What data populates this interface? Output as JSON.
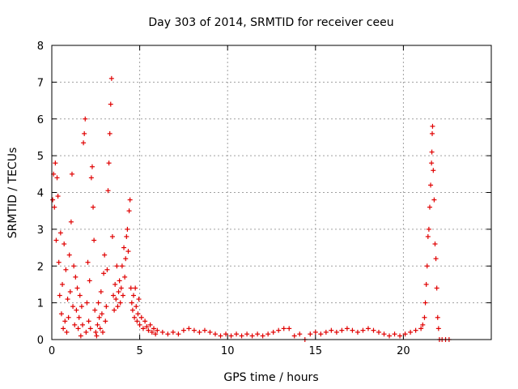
{
  "chart_data": {
    "type": "scatter",
    "title": "Day 303 of 2014, SRMTID for receiver ceeu",
    "xlabel": "GPS time / hours",
    "ylabel": "SRMTID / TECUs",
    "xlim": [
      0,
      25
    ],
    "ylim": [
      0,
      8
    ],
    "xticks": [
      0,
      5,
      10,
      15,
      20
    ],
    "yticks": [
      0,
      1,
      2,
      3,
      4,
      5,
      6,
      7,
      8
    ],
    "grid": true,
    "marker": "+",
    "color": "#e00000",
    "series": [
      {
        "name": "SRMTID",
        "points": [
          [
            0.05,
            3.8
          ],
          [
            0.1,
            4.5
          ],
          [
            0.15,
            3.6
          ],
          [
            0.2,
            4.8
          ],
          [
            0.25,
            2.7
          ],
          [
            0.3,
            4.4
          ],
          [
            0.35,
            3.9
          ],
          [
            0.4,
            2.1
          ],
          [
            0.45,
            1.2
          ],
          [
            0.5,
            2.9
          ],
          [
            0.55,
            0.7
          ],
          [
            0.6,
            1.5
          ],
          [
            0.65,
            0.3
          ],
          [
            0.7,
            2.6
          ],
          [
            0.75,
            0.5
          ],
          [
            0.8,
            1.9
          ],
          [
            0.85,
            0.2
          ],
          [
            0.9,
            1.1
          ],
          [
            0.95,
            0.6
          ],
          [
            1.0,
            2.3
          ],
          [
            1.05,
            1.3
          ],
          [
            1.1,
            3.2
          ],
          [
            1.15,
            4.5
          ],
          [
            1.2,
            0.9
          ],
          [
            1.25,
            2.0
          ],
          [
            1.3,
            0.4
          ],
          [
            1.35,
            1.7
          ],
          [
            1.4,
            0.8
          ],
          [
            1.45,
            1.4
          ],
          [
            1.5,
            0.3
          ],
          [
            1.55,
            0.6
          ],
          [
            1.6,
            1.2
          ],
          [
            1.65,
            0.1
          ],
          [
            1.7,
            0.9
          ],
          [
            1.75,
            0.4
          ],
          [
            1.8,
            5.35
          ],
          [
            1.85,
            5.6
          ],
          [
            1.9,
            6.0
          ],
          [
            1.95,
            0.2
          ],
          [
            2.0,
            1.0
          ],
          [
            2.05,
            2.1
          ],
          [
            2.1,
            0.5
          ],
          [
            2.15,
            1.6
          ],
          [
            2.2,
            0.3
          ],
          [
            2.25,
            4.4
          ],
          [
            2.3,
            4.7
          ],
          [
            2.35,
            3.6
          ],
          [
            2.4,
            2.7
          ],
          [
            2.45,
            0.8
          ],
          [
            2.5,
            0.2
          ],
          [
            2.55,
            0.1
          ],
          [
            2.6,
            0.4
          ],
          [
            2.65,
            1.0
          ],
          [
            2.7,
            0.6
          ],
          [
            2.75,
            0.3
          ],
          [
            2.8,
            1.3
          ],
          [
            2.85,
            0.7
          ],
          [
            2.9,
            0.2
          ],
          [
            2.95,
            1.8
          ],
          [
            3.0,
            2.3
          ],
          [
            3.05,
            0.5
          ],
          [
            3.1,
            0.9
          ],
          [
            3.15,
            1.9
          ],
          [
            3.2,
            4.05
          ],
          [
            3.25,
            4.8
          ],
          [
            3.3,
            5.6
          ],
          [
            3.35,
            6.4
          ],
          [
            3.4,
            7.1
          ],
          [
            3.45,
            2.8
          ],
          [
            3.5,
            1.2
          ],
          [
            3.55,
            0.8
          ],
          [
            3.6,
            1.5
          ],
          [
            3.65,
            1.1
          ],
          [
            3.7,
            2.0
          ],
          [
            3.75,
            0.9
          ],
          [
            3.8,
            1.3
          ],
          [
            3.85,
            1.6
          ],
          [
            3.9,
            1.0
          ],
          [
            3.95,
            1.4
          ],
          [
            4.0,
            2.0
          ],
          [
            4.05,
            1.2
          ],
          [
            4.1,
            2.5
          ],
          [
            4.15,
            1.7
          ],
          [
            4.2,
            2.2
          ],
          [
            4.25,
            2.8
          ],
          [
            4.3,
            3.0
          ],
          [
            4.35,
            2.4
          ],
          [
            4.4,
            3.5
          ],
          [
            4.45,
            3.8
          ],
          [
            4.5,
            1.4
          ],
          [
            4.55,
            1.0
          ],
          [
            4.6,
            0.8
          ],
          [
            4.65,
            1.2
          ],
          [
            4.7,
            0.6
          ],
          [
            4.75,
            1.4
          ],
          [
            4.8,
            0.9
          ],
          [
            4.85,
            0.5
          ],
          [
            4.9,
            0.7
          ],
          [
            4.95,
            1.1
          ],
          [
            5.0,
            0.4
          ],
          [
            5.1,
            0.6
          ],
          [
            5.2,
            0.3
          ],
          [
            5.3,
            0.5
          ],
          [
            5.4,
            0.35
          ],
          [
            5.5,
            0.25
          ],
          [
            5.6,
            0.4
          ],
          [
            5.7,
            0.2
          ],
          [
            5.8,
            0.3
          ],
          [
            5.9,
            0.15
          ],
          [
            6.0,
            0.25
          ],
          [
            6.3,
            0.2
          ],
          [
            6.6,
            0.15
          ],
          [
            6.9,
            0.2
          ],
          [
            7.2,
            0.15
          ],
          [
            7.5,
            0.25
          ],
          [
            7.8,
            0.3
          ],
          [
            8.1,
            0.25
          ],
          [
            8.4,
            0.2
          ],
          [
            8.7,
            0.25
          ],
          [
            9.0,
            0.2
          ],
          [
            9.3,
            0.15
          ],
          [
            9.6,
            0.1
          ],
          [
            9.9,
            0.15
          ],
          [
            10.2,
            0.1
          ],
          [
            10.5,
            0.15
          ],
          [
            10.8,
            0.1
          ],
          [
            11.1,
            0.15
          ],
          [
            11.4,
            0.1
          ],
          [
            11.7,
            0.15
          ],
          [
            12.0,
            0.1
          ],
          [
            12.3,
            0.15
          ],
          [
            12.6,
            0.2
          ],
          [
            12.9,
            0.25
          ],
          [
            13.2,
            0.3
          ],
          [
            13.5,
            0.3
          ],
          [
            13.8,
            0.1
          ],
          [
            14.1,
            0.15
          ],
          [
            14.4,
            0.0
          ],
          [
            14.7,
            0.15
          ],
          [
            15.0,
            0.2
          ],
          [
            15.3,
            0.15
          ],
          [
            15.6,
            0.2
          ],
          [
            15.9,
            0.25
          ],
          [
            16.2,
            0.2
          ],
          [
            16.5,
            0.25
          ],
          [
            16.8,
            0.3
          ],
          [
            17.1,
            0.25
          ],
          [
            17.4,
            0.2
          ],
          [
            17.7,
            0.25
          ],
          [
            18.0,
            0.3
          ],
          [
            18.3,
            0.25
          ],
          [
            18.6,
            0.2
          ],
          [
            18.9,
            0.15
          ],
          [
            19.2,
            0.1
          ],
          [
            19.5,
            0.15
          ],
          [
            19.8,
            0.1
          ],
          [
            20.1,
            0.15
          ],
          [
            20.4,
            0.2
          ],
          [
            20.7,
            0.25
          ],
          [
            21.0,
            0.3
          ],
          [
            21.1,
            0.4
          ],
          [
            21.2,
            0.6
          ],
          [
            21.25,
            1.0
          ],
          [
            21.3,
            1.5
          ],
          [
            21.35,
            2.0
          ],
          [
            21.4,
            2.8
          ],
          [
            21.45,
            3.0
          ],
          [
            21.5,
            3.6
          ],
          [
            21.55,
            4.2
          ],
          [
            21.6,
            4.8
          ],
          [
            21.62,
            5.1
          ],
          [
            21.64,
            5.6
          ],
          [
            21.66,
            5.8
          ],
          [
            21.7,
            4.6
          ],
          [
            21.75,
            3.8
          ],
          [
            21.8,
            2.6
          ],
          [
            21.85,
            2.2
          ],
          [
            21.9,
            1.4
          ],
          [
            21.95,
            0.6
          ],
          [
            22.0,
            0.3
          ],
          [
            22.05,
            0.0
          ],
          [
            22.2,
            0.0
          ],
          [
            22.4,
            0.0
          ],
          [
            22.6,
            0.0
          ]
        ]
      }
    ]
  }
}
